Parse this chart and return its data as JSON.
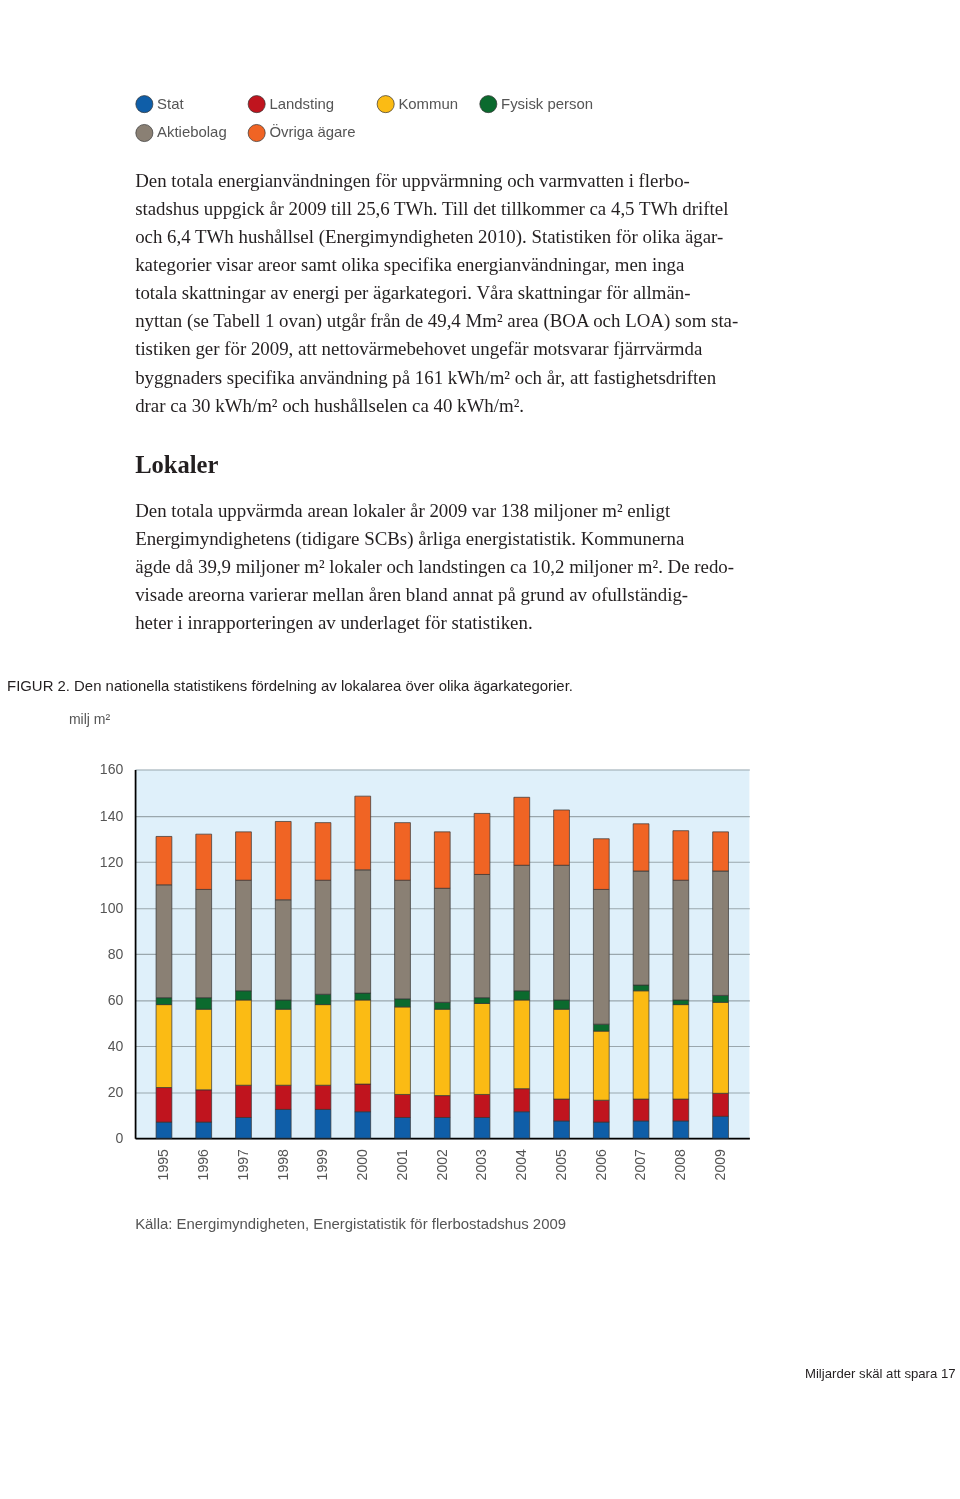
{
  "chart_data": {
    "type": "bar",
    "stacked": true,
    "title": "FIGUR 2. Den nationella statistikens fördelning av lokalarea över olika ägarkategorier.",
    "ylabel": "milj m²",
    "categories": [
      "1995",
      "1996",
      "1997",
      "1998",
      "1999",
      "2000",
      "2001",
      "2002",
      "2003",
      "2004",
      "2005",
      "2006",
      "2007",
      "2008",
      "2009"
    ],
    "series": [
      {
        "name": "Stat",
        "color": "#0f5ea8",
        "values": [
          7,
          7,
          9,
          12.5,
          12.5,
          11.5,
          9,
          9,
          9,
          11.5,
          7.5,
          7,
          7.5,
          7.5,
          9.5
        ]
      },
      {
        "name": "Landsting",
        "color": "#c0141e",
        "values": [
          15,
          14,
          14,
          10.5,
          10.5,
          12,
          10,
          9.5,
          10,
          10,
          9.5,
          9.5,
          9.5,
          9.5,
          10
        ]
      },
      {
        "name": "Kommun",
        "color": "#fbbb14",
        "values": [
          36,
          35,
          37,
          33,
          35,
          36.5,
          38,
          37.5,
          39.5,
          38.5,
          39,
          30,
          47,
          41,
          39.5
        ]
      },
      {
        "name": "Fysisk person",
        "color": "#0b6a2e",
        "values": [
          3,
          5,
          4,
          4,
          4.5,
          3,
          3.5,
          3,
          2.5,
          4,
          4,
          3,
          2.5,
          2,
          3
        ]
      },
      {
        "name": "Aktiebolag",
        "color": "#8a8074",
        "values": [
          49,
          47,
          48,
          43.5,
          49.5,
          53.5,
          51.5,
          49.5,
          53.5,
          54.5,
          58.5,
          58.5,
          49.5,
          52,
          54
        ]
      },
      {
        "name": "Övriga ägare",
        "color": "#f06424",
        "values": [
          21,
          24,
          21,
          34,
          25,
          32,
          25,
          24.5,
          26.5,
          29.5,
          24,
          22,
          20.5,
          21.5,
          17
        ]
      }
    ],
    "ylim": [
      0,
      160
    ],
    "yticks": [
      0,
      20,
      40,
      60,
      80,
      100,
      120,
      140,
      160
    ],
    "grid": "y",
    "legend": "top",
    "annotations": [
      "Den totala energianvändningen för uppvärmning och varmvatten i flerbo-",
      "stadshus uppgick år 2009 till 25,6 TWh. Till det tillkommer ca 4,5 TWh driftel",
      "och 6,4 TWh hushållsel (Energimyndigheten 2010). Statistiken för olika ägar-",
      "kategorier visar areor samt olika specifika energianvändningar, men inga",
      "totala skattningar av energi per ägarkategori. Våra skattningar för allmän-",
      "nyttan (se Tabell 1 ovan) utgår från de 49,4 Mm² area (BOA och LOA) som sta-",
      "tistiken ger för 2009, att nettovärmebehovet ungefär motsvarar fjärrvärmda",
      "byggnaders specifika användning på 161 kWh/m² och år, att fastighetsdriften",
      "drar ca 30 kWh/m² och hushållselen ca 40 kWh/m².",
      "Lokaler",
      "Den totala uppvärmda arean lokaler år 2009 var 138 miljoner m² enligt",
      "Energimyndighetens (tidigare SCBs) årliga energistatistik. Kommunerna",
      "ägde då 39,9 miljoner m² lokaler och landstingen ca 10,2 miljoner m². De redo-",
      "visade areorna varierar mellan åren bland annat på grund av ofullständig-",
      "heter i inrapporteringen av underlaget för statistiken.",
      "Källa: Energimyndigheten, Energistatistik för flerbostadshus 2009",
      "Miljarder skäl att spara   17"
    ]
  }
}
